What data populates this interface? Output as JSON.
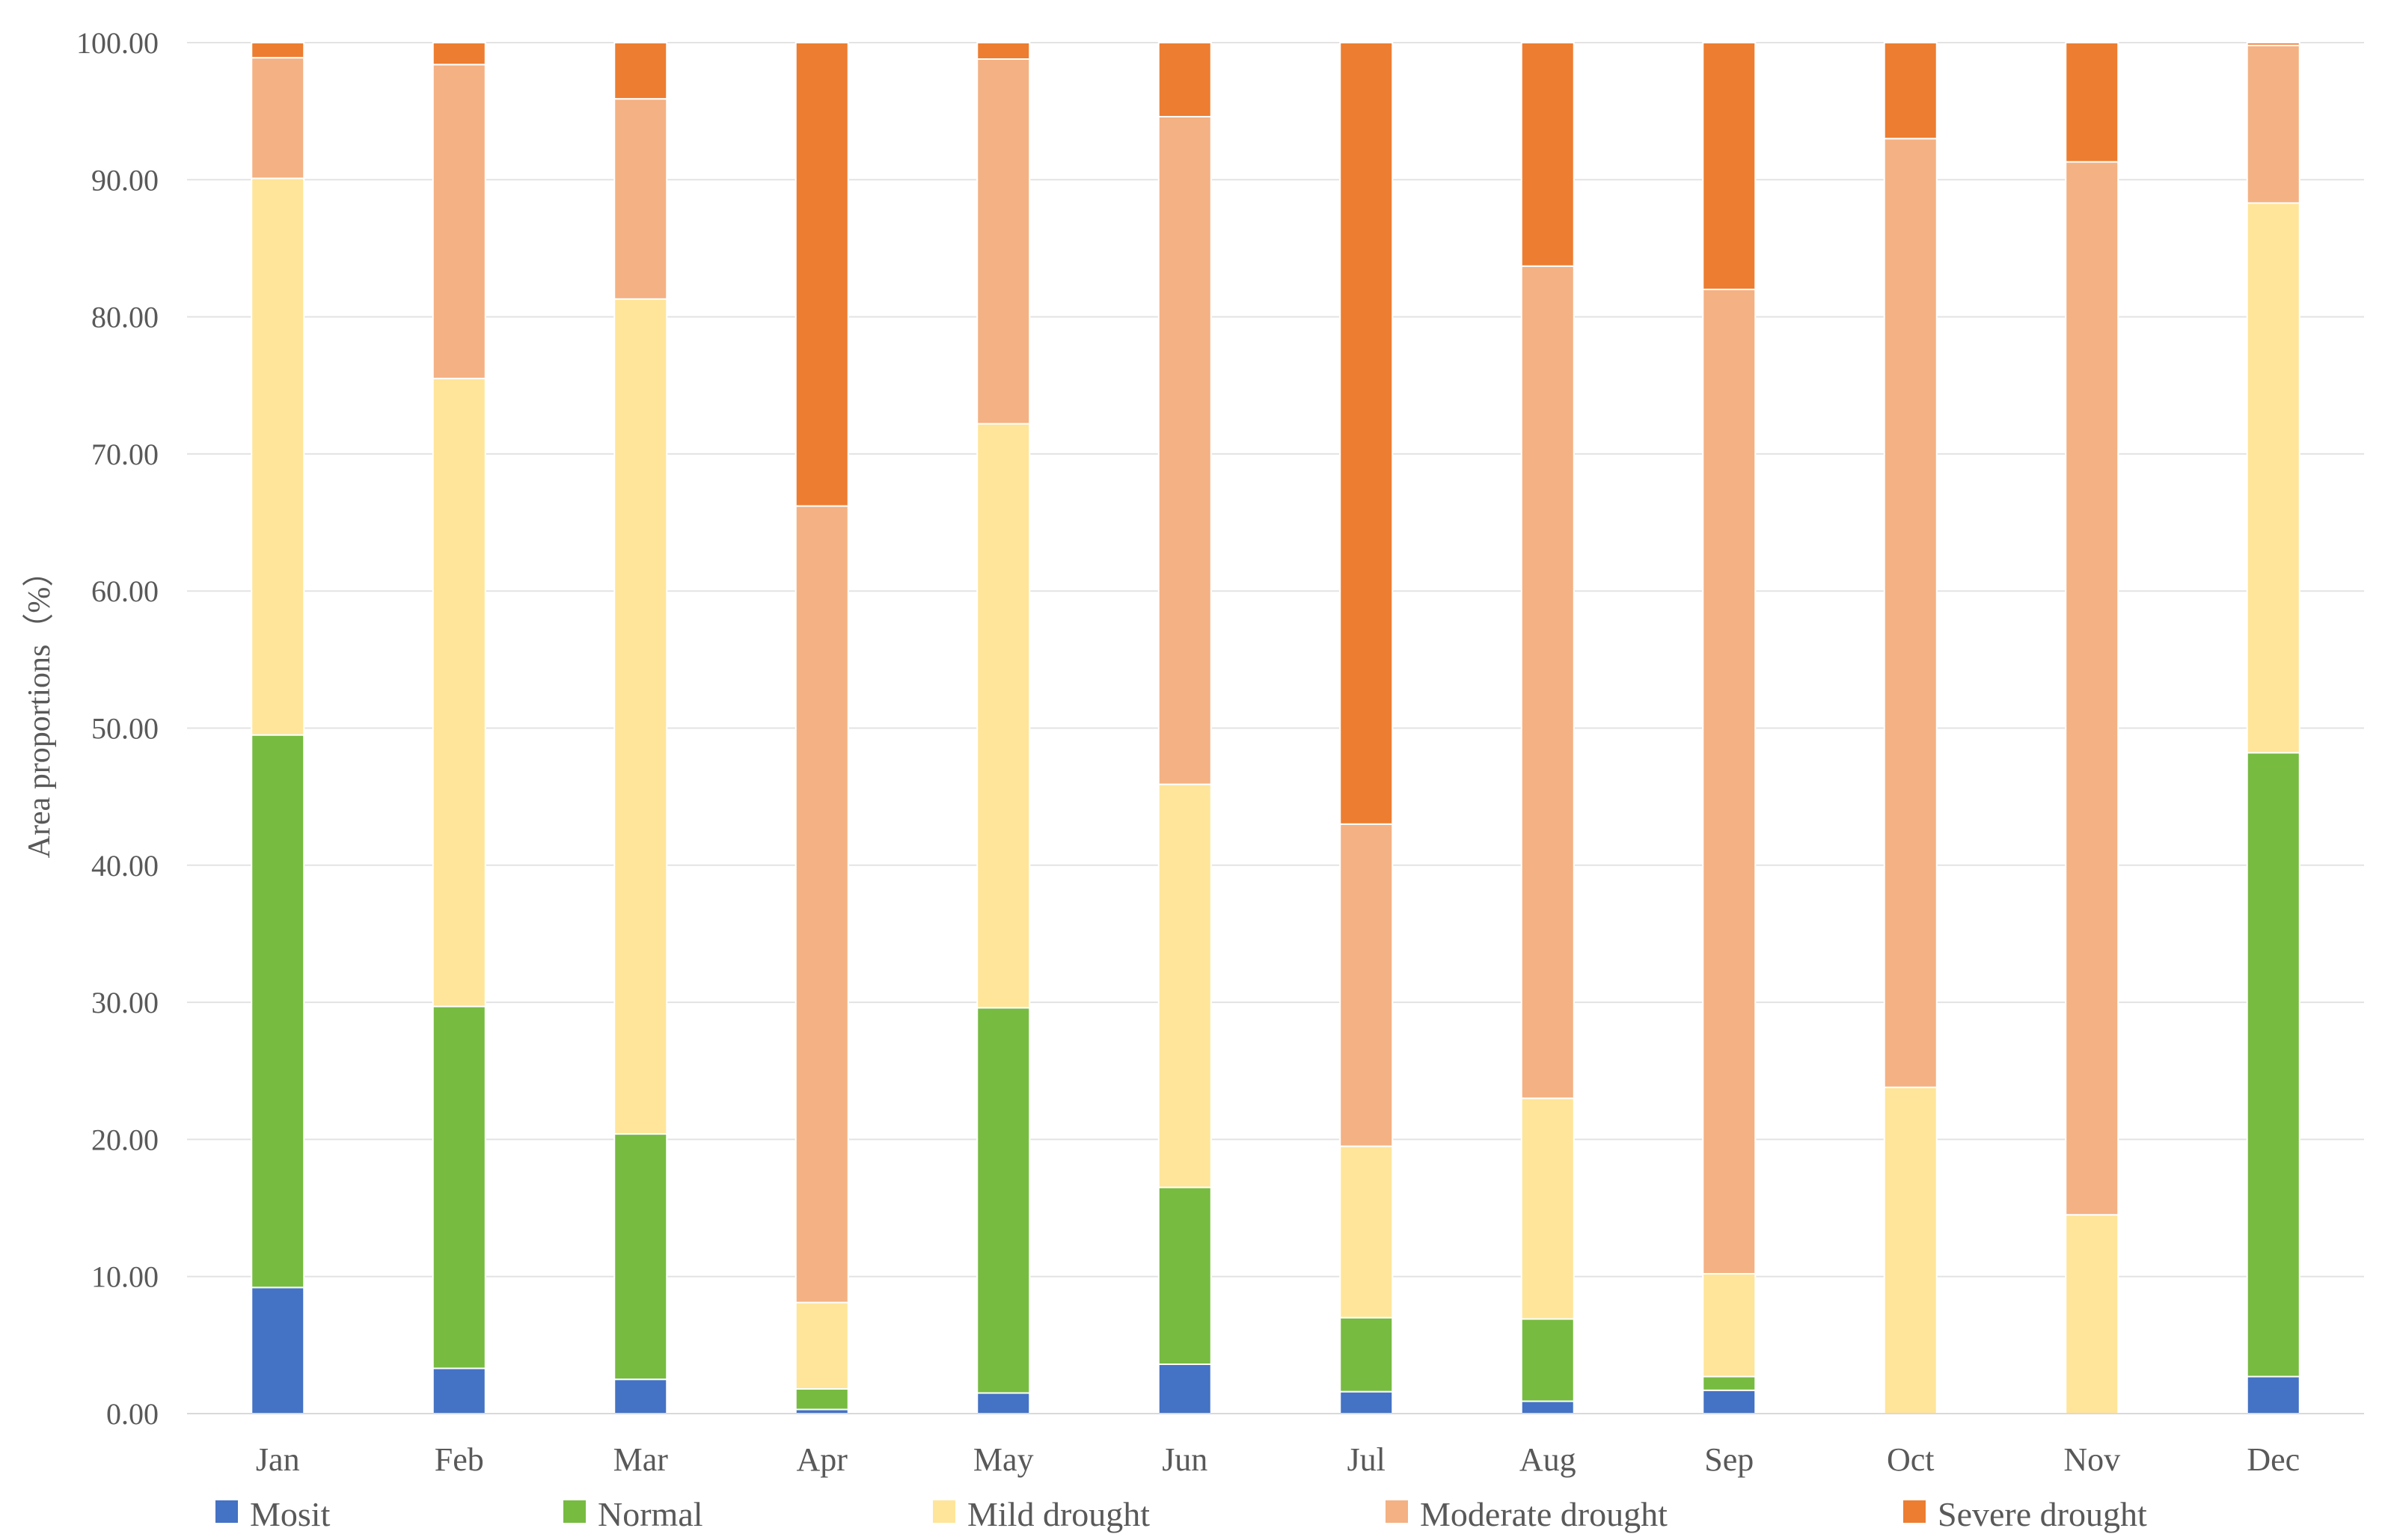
{
  "chart_data": {
    "type": "bar",
    "stacked": true,
    "title": "",
    "xlabel": "",
    "ylabel": "Area proportions（%）",
    "ylim": [
      0,
      100
    ],
    "yticks": [
      0,
      10,
      20,
      30,
      40,
      50,
      60,
      70,
      80,
      90,
      100
    ],
    "ytick_labels": [
      "0.00",
      "10.00",
      "20.00",
      "30.00",
      "40.00",
      "50.00",
      "60.00",
      "70.00",
      "80.00",
      "90.00",
      "100.00"
    ],
    "grid": true,
    "legend_position": "bottom",
    "categories": [
      "Jan",
      "Feb",
      "Mar",
      "Apr",
      "May",
      "Jun",
      "Jul",
      "Aug",
      "Sep",
      "Oct",
      "Nov",
      "Dec"
    ],
    "series": [
      {
        "name": "Mosit",
        "color": "#4472C4",
        "values": [
          9.2,
          3.3,
          2.5,
          0.3,
          1.5,
          3.6,
          1.6,
          0.9,
          1.7,
          0,
          0,
          2.7
        ]
      },
      {
        "name": "Normal",
        "color": "#77BB41",
        "values": [
          40.3,
          26.4,
          17.9,
          1.5,
          28.1,
          12.9,
          5.4,
          6.0,
          1.0,
          0,
          0,
          45.5
        ]
      },
      {
        "name": "Mild drought",
        "color": "#FFE599",
        "values": [
          40.6,
          45.8,
          60.9,
          6.3,
          42.6,
          29.4,
          12.5,
          16.1,
          7.5,
          23.8,
          14.5,
          40.1
        ]
      },
      {
        "name": "Moderate drought",
        "color": "#F4B183",
        "values": [
          8.8,
          22.9,
          14.6,
          58.1,
          26.6,
          48.7,
          23.5,
          60.7,
          71.8,
          69.2,
          76.8,
          11.5
        ]
      },
      {
        "name": "Severe drought",
        "color": "#ED7D31",
        "values": [
          1.1,
          1.6,
          4.1,
          33.8,
          1.2,
          5.4,
          57.0,
          16.3,
          18.0,
          7.0,
          8.7,
          0.2
        ]
      }
    ]
  }
}
